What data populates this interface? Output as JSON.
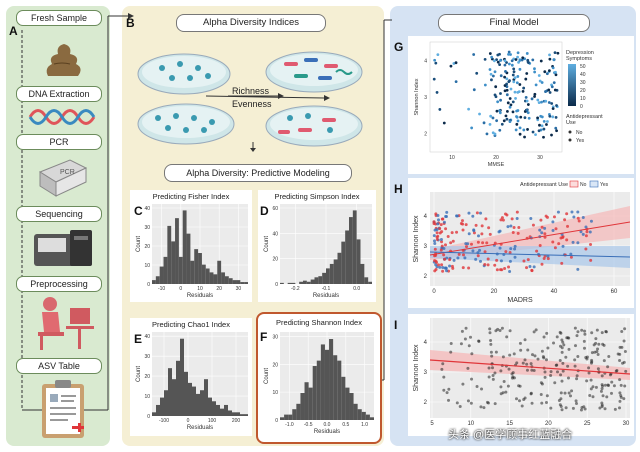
{
  "workflow": {
    "letter": "A",
    "steps": [
      "Fresh Sample",
      "DNA Extraction",
      "PCR",
      "Sequencing",
      "Preprocessing",
      "ASV Table"
    ]
  },
  "alpha": {
    "letter": "B",
    "header": "Alpha Diversity Indices",
    "richness": "Richness",
    "evenness": "Evenness",
    "predictive": "Alpha Diversity: Predictive Modeling"
  },
  "panels": {
    "C": {
      "letter": "C",
      "title": "Predicting Fisher Index",
      "xlabel": "Residuals",
      "ylabel": "Count",
      "xticks": [
        "-10",
        "0",
        "10",
        "20",
        "30"
      ],
      "yticks": [
        "0",
        "10",
        "20",
        "30",
        "40"
      ],
      "bars": [
        2,
        4,
        9,
        14,
        30,
        22,
        34,
        14,
        38,
        26,
        12,
        18,
        16,
        10,
        8,
        6,
        5,
        12,
        6,
        4,
        3,
        2,
        2,
        1,
        1
      ]
    },
    "D": {
      "letter": "D",
      "title": "Predicting Simpson Index",
      "xlabel": "Residuals",
      "ylabel": "Count",
      "xticks": [
        "-0.2",
        "-0.1",
        "0.0"
      ],
      "yticks": [
        "0",
        "20",
        "40",
        "60"
      ],
      "bars": [
        1,
        0,
        1,
        1,
        0,
        2,
        3,
        2,
        4,
        6,
        7,
        10,
        14,
        18,
        22,
        28,
        38,
        48,
        60,
        66,
        40,
        18,
        6,
        2
      ]
    },
    "E": {
      "letter": "E",
      "title": "Predicting Chao1 Index",
      "xlabel": "Residuals",
      "ylabel": "Count",
      "xticks": [
        "-100",
        "0",
        "100",
        "200"
      ],
      "yticks": [
        "0",
        "10",
        "20",
        "30",
        "40"
      ],
      "bars": [
        2,
        6,
        10,
        14,
        26,
        20,
        30,
        42,
        24,
        18,
        16,
        12,
        14,
        20,
        10,
        8,
        6,
        4,
        6,
        3,
        2,
        2,
        1,
        1
      ]
    },
    "F": {
      "letter": "F",
      "title": "Predicting Shannon Index",
      "xlabel": "Residuals",
      "ylabel": "Count",
      "xticks": [
        "-1.0",
        "-0.5",
        "0.0",
        "0.5",
        "1.0"
      ],
      "yticks": [
        "0",
        "10",
        "20",
        "30"
      ],
      "bars": [
        1,
        2,
        2,
        4,
        6,
        10,
        14,
        12,
        20,
        22,
        28,
        26,
        30,
        24,
        22,
        16,
        12,
        10,
        6,
        4,
        3,
        2,
        1
      ]
    }
  },
  "finalModel": {
    "header": "Final Model"
  },
  "G": {
    "letter": "G",
    "xlabel": "MMSE",
    "ylabel": "Shannon Index",
    "xticks": [
      "10",
      "20",
      "30"
    ],
    "yticks": [
      "2",
      "3",
      "4"
    ],
    "legendTitle": "Depression Symptoms",
    "legendTicks": [
      "50",
      "40",
      "30",
      "20",
      "10",
      "0"
    ],
    "legendTitle2": "Antidepressant Use",
    "legendNo": "No",
    "legendYes": "Yes"
  },
  "H": {
    "letter": "H",
    "legendTitle": "Antidepressant Use",
    "legendNo": "No",
    "legendYes": "Yes",
    "xlabel": "MADRS",
    "ylabel": "Shannon Index",
    "xticks": [
      "0",
      "20",
      "40",
      "60"
    ],
    "yticks": [
      "2",
      "3",
      "4"
    ]
  },
  "I": {
    "letter": "I",
    "xlabel": "",
    "ylabel": "Shannon Index",
    "xticks": [
      "5",
      "10",
      "15",
      "20",
      "25",
      "30"
    ],
    "yticks": [
      "2",
      "3",
      "4"
    ]
  },
  "colors": {
    "green": "#d9ead0",
    "tan": "#f5efd4",
    "blue": "#d6e3f3",
    "red": "#e0363a",
    "bluePt": "#3a6fb8"
  },
  "watermark": "头条 @医学顾事红蓝融合"
}
